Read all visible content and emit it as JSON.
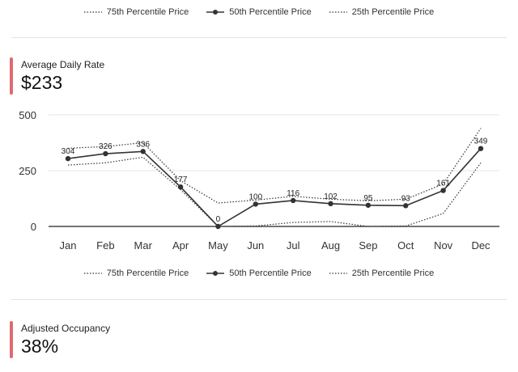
{
  "legend_top": {
    "items": [
      {
        "label": "75th Percentile Price",
        "style": "dotted"
      },
      {
        "label": "50th Percentile Price",
        "style": "solid-marker"
      },
      {
        "label": "25th Percentile Price",
        "style": "dotted"
      }
    ]
  },
  "adr": {
    "label": "Average Daily Rate",
    "value": "$233"
  },
  "occupancy": {
    "label": "Adjusted Occupancy",
    "value": "38%"
  },
  "colors": {
    "accent": "#e06a70",
    "line": "#333333",
    "divider": "#e2e2e2"
  },
  "chart_data": {
    "type": "line",
    "categories": [
      "Jan",
      "Feb",
      "Mar",
      "Apr",
      "May",
      "Jun",
      "Jul",
      "Aug",
      "Sep",
      "Oct",
      "Nov",
      "Dec"
    ],
    "series": [
      {
        "name": "75th Percentile Price",
        "style": "dotted",
        "values": [
          350,
          358,
          375,
          205,
          105,
          118,
          135,
          122,
          115,
          122,
          190,
          440
        ]
      },
      {
        "name": "50th Percentile Price",
        "style": "solid",
        "values": [
          304,
          326,
          336,
          177,
          0,
          100,
          116,
          102,
          95,
          93,
          161,
          349
        ]
      },
      {
        "name": "25th Percentile Price",
        "style": "dotted",
        "values": [
          275,
          285,
          310,
          165,
          0,
          2,
          18,
          22,
          0,
          2,
          58,
          285
        ]
      }
    ],
    "data_labels": [
      "304",
      "326",
      "336",
      "177",
      "0",
      "100",
      "116",
      "102",
      "95",
      "93",
      "161",
      "349"
    ],
    "yticks": [
      "0",
      "250",
      "500"
    ],
    "ylim": [
      0,
      500
    ],
    "grid": true,
    "legend_position": "bottom"
  }
}
